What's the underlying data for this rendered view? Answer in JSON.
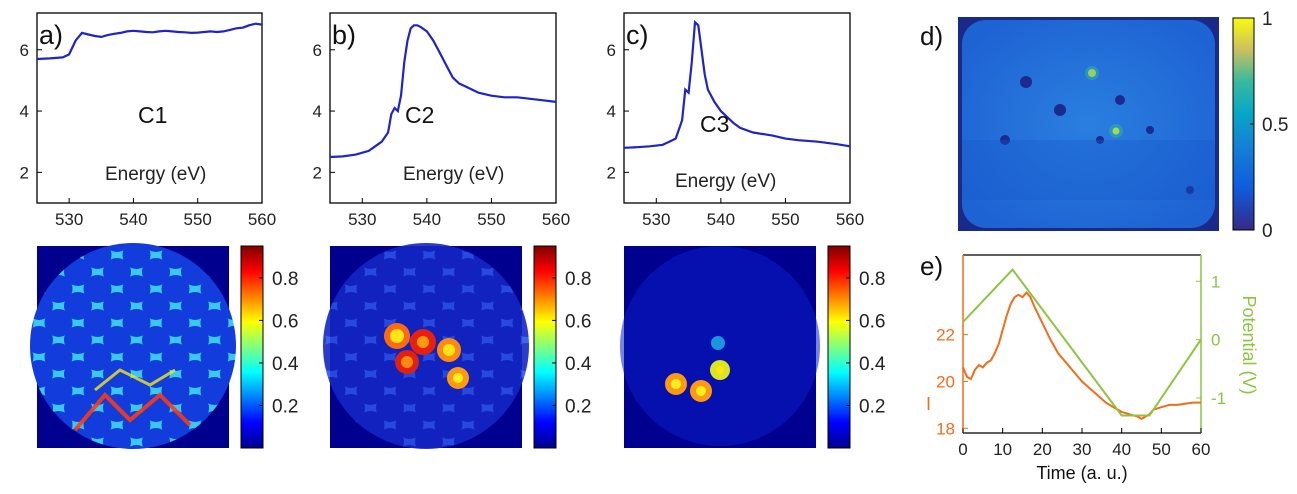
{
  "chart_data": [
    {
      "type": "line",
      "panel": "a)",
      "annotation": "C1",
      "xlabel": "Energy (eV)",
      "ylabel": "",
      "xlim": [
        525,
        560
      ],
      "ylim": [
        1,
        7.2
      ],
      "xticks": [
        530,
        540,
        550,
        560
      ],
      "yticks": [
        2,
        4,
        6
      ],
      "color": "#1f23c8",
      "series": [
        {
          "x": [
            525,
            527,
            529,
            530,
            531,
            532,
            533,
            534,
            535,
            536,
            537,
            538,
            539,
            540,
            541,
            542,
            543,
            544,
            545,
            546,
            547,
            548,
            549,
            550,
            551,
            552,
            553,
            554,
            555,
            556,
            557,
            558,
            559,
            560
          ],
          "y": [
            5.7,
            5.72,
            5.75,
            5.85,
            6.3,
            6.55,
            6.5,
            6.45,
            6.42,
            6.48,
            6.52,
            6.55,
            6.6,
            6.62,
            6.6,
            6.58,
            6.57,
            6.6,
            6.62,
            6.6,
            6.58,
            6.57,
            6.55,
            6.56,
            6.58,
            6.6,
            6.58,
            6.6,
            6.65,
            6.7,
            6.72,
            6.8,
            6.85,
            6.82
          ]
        }
      ]
    },
    {
      "type": "line",
      "panel": "b)",
      "annotation": "C2",
      "xlabel": "Energy (eV)",
      "ylabel": "",
      "xlim": [
        525,
        560
      ],
      "ylim": [
        1,
        7.2
      ],
      "xticks": [
        530,
        540,
        550,
        560
      ],
      "yticks": [
        2,
        4,
        6
      ],
      "color": "#1f23c8",
      "series": [
        {
          "x": [
            525,
            527,
            529,
            531,
            532,
            533,
            534,
            534.5,
            535,
            535.5,
            536,
            536.5,
            537,
            537.5,
            538,
            538.5,
            539,
            540,
            541,
            542,
            543,
            544,
            545,
            546,
            547,
            548,
            550,
            552,
            554,
            556,
            558,
            560
          ],
          "y": [
            2.5,
            2.52,
            2.58,
            2.7,
            2.85,
            3.0,
            3.3,
            3.9,
            4.1,
            4.0,
            4.5,
            5.6,
            6.3,
            6.7,
            6.8,
            6.8,
            6.75,
            6.6,
            6.3,
            5.9,
            5.5,
            5.1,
            4.9,
            4.8,
            4.7,
            4.6,
            4.5,
            4.45,
            4.45,
            4.4,
            4.35,
            4.3
          ]
        }
      ]
    },
    {
      "type": "line",
      "panel": "c)",
      "annotation": "C3",
      "xlabel": "Energy (eV)",
      "ylabel": "",
      "xlim": [
        525,
        560
      ],
      "ylim": [
        1,
        7.2
      ],
      "xticks": [
        530,
        540,
        550,
        560
      ],
      "yticks": [
        2,
        4,
        6
      ],
      "color": "#1f23c8",
      "series": [
        {
          "x": [
            525,
            527,
            529,
            531,
            532,
            533,
            534,
            534.5,
            535,
            535.5,
            536,
            536.5,
            537,
            537.5,
            538,
            539,
            540,
            541,
            542,
            543,
            545,
            548,
            550,
            552,
            555,
            558,
            560
          ],
          "y": [
            2.8,
            2.82,
            2.85,
            2.9,
            3.0,
            3.1,
            3.7,
            4.7,
            4.6,
            5.6,
            6.9,
            6.8,
            6.0,
            5.2,
            4.7,
            4.3,
            4.0,
            3.8,
            3.6,
            3.45,
            3.3,
            3.2,
            3.1,
            3.05,
            3.0,
            2.92,
            2.85
          ]
        }
      ]
    },
    {
      "type": "heatmap",
      "panel": "d)",
      "colorbar_ticks": [
        "0",
        "0.5",
        "1"
      ],
      "colormap": "parula"
    },
    {
      "type": "line",
      "panel": "e)",
      "xlabel": "Time (a. u.)",
      "ylabel": "I",
      "y2label": "Potential (V)",
      "xlim": [
        0,
        60
      ],
      "ylim": [
        17.8,
        25.4
      ],
      "y2lim": [
        -1.6,
        1.45
      ],
      "xticks": [
        0,
        10,
        20,
        30,
        40,
        50,
        60
      ],
      "yticks": [
        18,
        20,
        22
      ],
      "y2ticks": [
        -1,
        0,
        1
      ],
      "series": [
        {
          "axis": "left",
          "color": "#f06d1a",
          "x": [
            0,
            1,
            2,
            3,
            4,
            5,
            6,
            7,
            8,
            9,
            10,
            11,
            12,
            13,
            14,
            15,
            16,
            17,
            18,
            20,
            22,
            24,
            26,
            28,
            30,
            32,
            34,
            36,
            38,
            40,
            42,
            44,
            45,
            46,
            47,
            48,
            50,
            52,
            54,
            56,
            58,
            60
          ],
          "y": [
            20.6,
            20.2,
            20.1,
            20.5,
            20.7,
            20.6,
            20.8,
            20.9,
            21.2,
            21.6,
            22.2,
            22.8,
            23.3,
            23.6,
            23.7,
            23.6,
            23.8,
            23.6,
            23.2,
            22.5,
            21.8,
            21.2,
            20.8,
            20.4,
            20.0,
            19.7,
            19.4,
            19.1,
            18.9,
            18.7,
            18.6,
            18.5,
            18.4,
            18.5,
            18.6,
            18.8,
            18.9,
            19.0,
            19.0,
            19.05,
            19.1,
            19.1
          ]
        },
        {
          "axis": "right",
          "color": "#8cc63f",
          "x": [
            0,
            12.5,
            40,
            47,
            60
          ],
          "y": [
            0.3,
            1.2,
            -1.3,
            -1.3,
            0
          ]
        }
      ]
    }
  ],
  "colorbar_labels": [
    "0.2",
    "0.4",
    "0.6",
    "0.8"
  ]
}
